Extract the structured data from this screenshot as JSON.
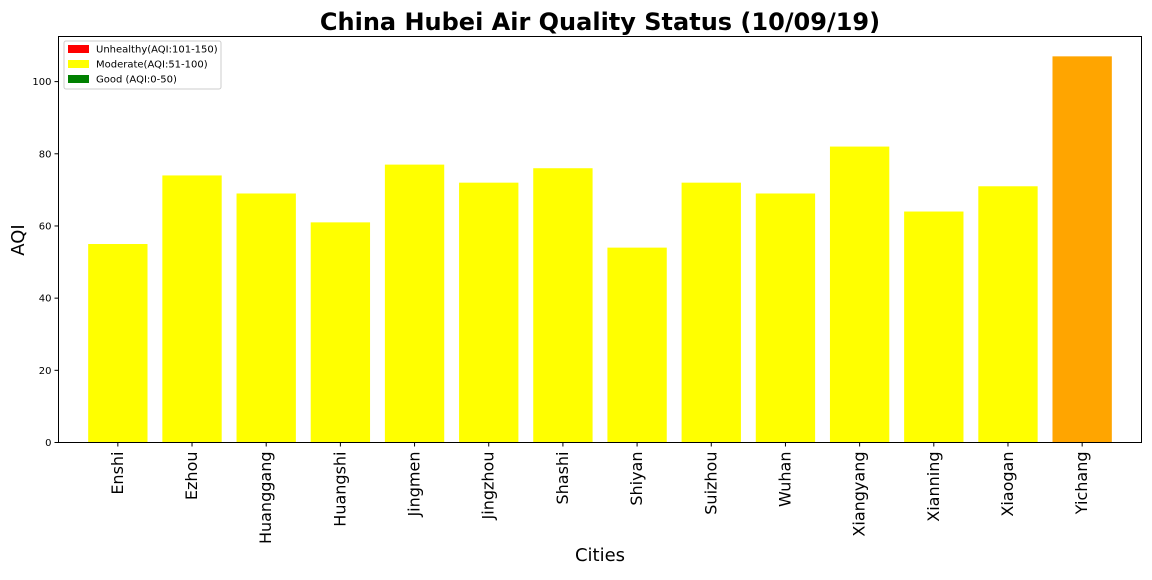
{
  "chart_data": {
    "type": "bar",
    "title": "China Hubei Air Quality Status (10/09/19)",
    "xlabel": "Cities",
    "ylabel": "AQI",
    "categories": [
      "Enshi",
      "Ezhou",
      "Huanggang",
      "Huangshi",
      "Jingmen",
      "Jingzhou",
      "Shashi",
      "Shiyan",
      "Suizhou",
      "Wuhan",
      "Xiangyang",
      "Xianning",
      "Xiaogan",
      "Yichang"
    ],
    "values": [
      55,
      74,
      69,
      61,
      77,
      72,
      76,
      54,
      72,
      69,
      82,
      64,
      71,
      107
    ],
    "bar_colors": [
      "#ffff00",
      "#ffff00",
      "#ffff00",
      "#ffff00",
      "#ffff00",
      "#ffff00",
      "#ffff00",
      "#ffff00",
      "#ffff00",
      "#ffff00",
      "#ffff00",
      "#ffff00",
      "#ffff00",
      "#ffa500"
    ],
    "ylim": [
      0,
      112.5
    ],
    "yticks": [
      0,
      20,
      40,
      60,
      80,
      100
    ],
    "grid": false,
    "legend": {
      "placement": "top-left",
      "entries": [
        {
          "label": "Unhealthy(AQI:101-150)",
          "color": "#ff0000"
        },
        {
          "label": "Moderate(AQI:51-100)",
          "color": "#ffff00"
        },
        {
          "label": "Good (AQI:0-50)",
          "color": "#008000"
        }
      ]
    }
  }
}
